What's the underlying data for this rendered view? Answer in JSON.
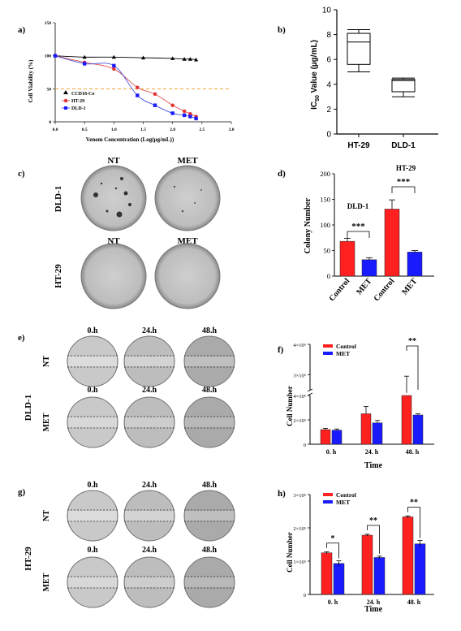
{
  "panel_letters": [
    "a)",
    "b)",
    "c)",
    "d)",
    "e)",
    "f)",
    "g)",
    "h)"
  ],
  "colors": {
    "red": "#ff2020",
    "blue": "#1a1aff",
    "ref_line": "#f0a030",
    "ccd": "#000000",
    "ht29_curve": "#e05050",
    "dld1_curve": "#4a50d8"
  },
  "chart_data": [
    {
      "id": "a",
      "type": "scatter",
      "xlabel": "Venom Concentration (Log(µg/mL))",
      "ylabel": "Cell Viability (%)",
      "xlim": [
        0,
        3.0
      ],
      "ylim": [
        0,
        150
      ],
      "xticks": [
        "0.0",
        "0.5",
        "1.0",
        "1.5",
        "2.0",
        "2.5",
        "3.0"
      ],
      "yticks": [
        "0",
        "50",
        "100",
        "150"
      ],
      "reference_line": 50,
      "series": [
        {
          "name": "CCD18-Co",
          "marker": "triangle",
          "color": "#000000",
          "x": [
            0.0,
            0.5,
            1.0,
            1.5,
            2.0,
            2.2,
            2.3,
            2.4
          ],
          "y": [
            100,
            98,
            98,
            97,
            96,
            95,
            95,
            94
          ]
        },
        {
          "name": "HT-29",
          "marker": "circle",
          "color": "#e03030",
          "x": [
            0.0,
            0.5,
            1.0,
            1.4,
            1.7,
            2.0,
            2.2,
            2.3,
            2.4
          ],
          "y": [
            100,
            90,
            80,
            52,
            42,
            25,
            16,
            12,
            8
          ]
        },
        {
          "name": "DLD-1",
          "marker": "square",
          "color": "#1a1aff",
          "x": [
            0.0,
            0.5,
            1.0,
            1.4,
            1.7,
            2.0,
            2.2,
            2.3,
            2.4
          ],
          "y": [
            100,
            88,
            85,
            40,
            25,
            13,
            10,
            8,
            5
          ]
        }
      ]
    },
    {
      "id": "b",
      "type": "boxplot",
      "ylabel": "IC50 Value (µg/mL)",
      "ylabel_main": "IC",
      "ylabel_sub": "50",
      "ylabel_rest": " Value (µg/mL)",
      "ylim": [
        0,
        10
      ],
      "yticks": [
        "0",
        "2",
        "4",
        "6",
        "8",
        "10"
      ],
      "categories": [
        "HT-29",
        "DLD-1"
      ],
      "boxes": [
        {
          "min": 5.0,
          "q1": 5.6,
          "median": 7.4,
          "q3": 8.1,
          "max": 8.4
        },
        {
          "min": 3.0,
          "q1": 3.4,
          "median": 4.3,
          "q3": 4.4,
          "max": 4.5
        }
      ]
    },
    {
      "id": "d",
      "type": "bar",
      "ylabel": "Colony Number",
      "ylim": [
        0,
        200
      ],
      "yticks": [
        "0",
        "50",
        "100",
        "150",
        "200"
      ],
      "categories": [
        "Control",
        "MET",
        "Control",
        "MET"
      ],
      "values": [
        68,
        32,
        131,
        47
      ],
      "errors": [
        6,
        4,
        18,
        3
      ],
      "colors": [
        "red",
        "blue",
        "red",
        "blue"
      ],
      "group_labels": [
        "DLD-1",
        "HT-29"
      ],
      "significance": [
        "***",
        "***"
      ]
    },
    {
      "id": "f",
      "type": "bar",
      "ylabel": "Cell Number",
      "xlabel": "Time",
      "categories": [
        "0. h",
        "24. h",
        "48. h"
      ],
      "yticks_lower": [
        "0",
        "2×10⁵",
        "4×10⁵"
      ],
      "yticks_upper": [
        "3×10⁶",
        "4×10⁶"
      ],
      "series": [
        {
          "name": "Control",
          "color": "red",
          "values": [
            120000,
            250000,
            2400000
          ],
          "errors": [
            10000,
            60000,
            550000
          ]
        },
        {
          "name": "MET",
          "color": "blue",
          "values": [
            115000,
            175000,
            240000
          ],
          "errors": [
            10000,
            20000,
            10000
          ]
        }
      ],
      "significance": [
        "",
        "",
        "**"
      ]
    },
    {
      "id": "h",
      "type": "bar",
      "ylabel": "Cell Number",
      "xlabel": "Time",
      "ylim": [
        0,
        300000
      ],
      "yticks": [
        "0",
        "1×10⁵",
        "2×10⁵",
        "3×10⁵"
      ],
      "categories": [
        "0. h",
        "24. h",
        "48. h"
      ],
      "series": [
        {
          "name": "Control",
          "color": "red",
          "values": [
            125000,
            178000,
            233000
          ],
          "errors": [
            3000,
            3000,
            3000
          ]
        },
        {
          "name": "MET",
          "color": "blue",
          "values": [
            93000,
            111000,
            152000
          ],
          "errors": [
            8000,
            4000,
            10000
          ]
        }
      ],
      "significance": [
        "*",
        "**",
        "**"
      ]
    }
  ],
  "panel_c_colony": {
    "col_labels": [
      "NT",
      "MET"
    ],
    "row_labels": [
      "DLD-1",
      "HT-29"
    ]
  },
  "panel_e_wound": {
    "time_labels": [
      "0.h",
      "24.h",
      "48.h"
    ],
    "row_labels": [
      "NT",
      "MET"
    ],
    "cell_line": "DLD-1"
  },
  "panel_g_wound": {
    "time_labels": [
      "0.h",
      "24.h",
      "48.h"
    ],
    "row_labels": [
      "NT",
      "MET"
    ],
    "cell_line": "HT-29"
  }
}
